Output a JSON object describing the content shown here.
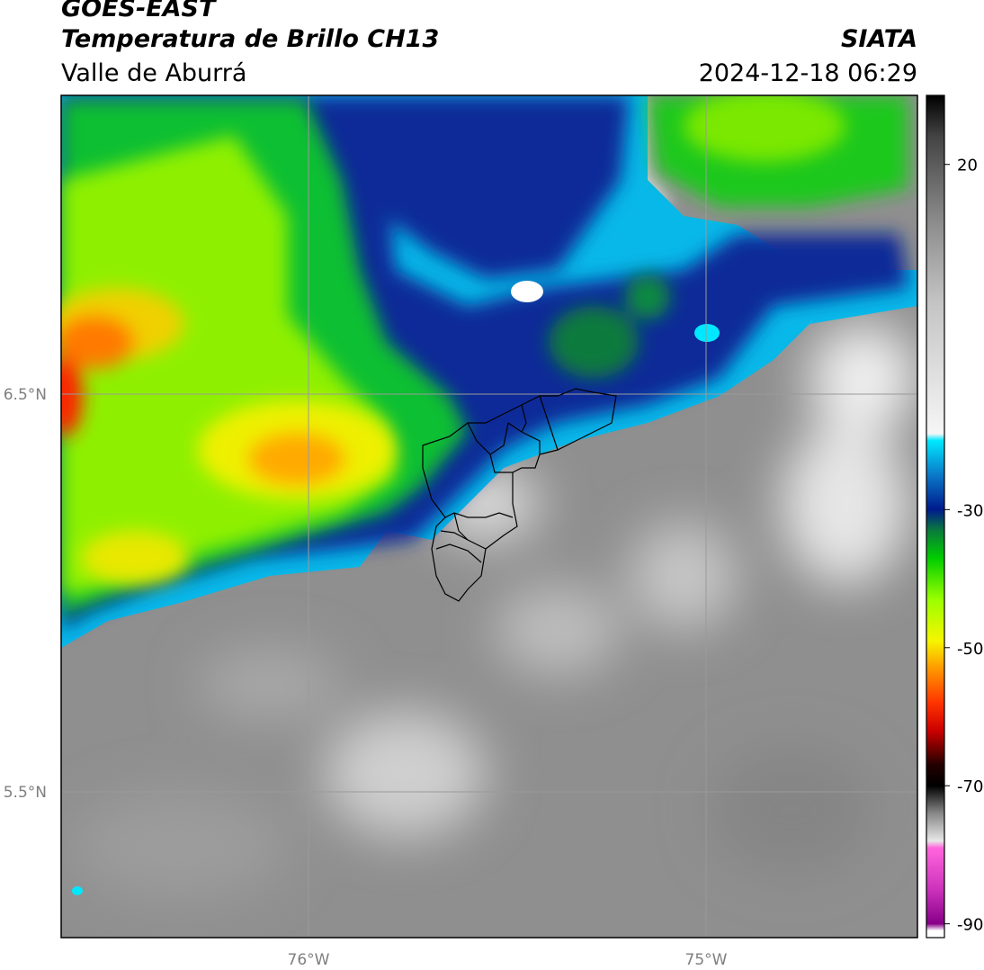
{
  "header": {
    "satellite": "GOES-EAST",
    "product": "Temperatura de Brillo CH13",
    "region": "Valle de Aburrá",
    "organization": "SIATA",
    "timestamp": "2024-12-18 06:29"
  },
  "map": {
    "lat_labels": [
      "6.5°N",
      "5.5°N"
    ],
    "lon_labels": [
      "76°W",
      "75°W"
    ],
    "gridline_color": "#9a9a9a",
    "boundary_color": "#000000"
  },
  "colorbar": {
    "ticks": [
      {
        "value": 20,
        "label": "20"
      },
      {
        "value": -30,
        "label": "-30"
      },
      {
        "value": -50,
        "label": "-50"
      },
      {
        "value": -70,
        "label": "-70"
      },
      {
        "value": -90,
        "label": "-90"
      }
    ],
    "range": [
      -92,
      30
    ],
    "stops": [
      {
        "value": 30,
        "color": "#000000"
      },
      {
        "value": 24,
        "color": "#444444"
      },
      {
        "value": 12,
        "color": "#8a8a8a"
      },
      {
        "value": 0,
        "color": "#c4c4c4"
      },
      {
        "value": -19,
        "color": "#f6f6f6"
      },
      {
        "value": -20,
        "color": "#00e8ff"
      },
      {
        "value": -25,
        "color": "#0a78c8"
      },
      {
        "value": -30,
        "color": "#001a8c"
      },
      {
        "value": -33,
        "color": "#0a7a3c"
      },
      {
        "value": -37,
        "color": "#00cc00"
      },
      {
        "value": -43,
        "color": "#9aff00"
      },
      {
        "value": -49,
        "color": "#f6f600"
      },
      {
        "value": -53,
        "color": "#ff9900"
      },
      {
        "value": -58,
        "color": "#ff3300"
      },
      {
        "value": -62,
        "color": "#cc0000"
      },
      {
        "value": -67,
        "color": "#220000"
      },
      {
        "value": -70,
        "color": "#000000"
      },
      {
        "value": -74,
        "color": "#888888"
      },
      {
        "value": -78,
        "color": "#e8e8e8"
      },
      {
        "value": -79,
        "color": "#ff66dd"
      },
      {
        "value": -85,
        "color": "#cc33bb"
      },
      {
        "value": -90,
        "color": "#880088"
      },
      {
        "value": -91,
        "color": "#ffffff"
      }
    ]
  }
}
